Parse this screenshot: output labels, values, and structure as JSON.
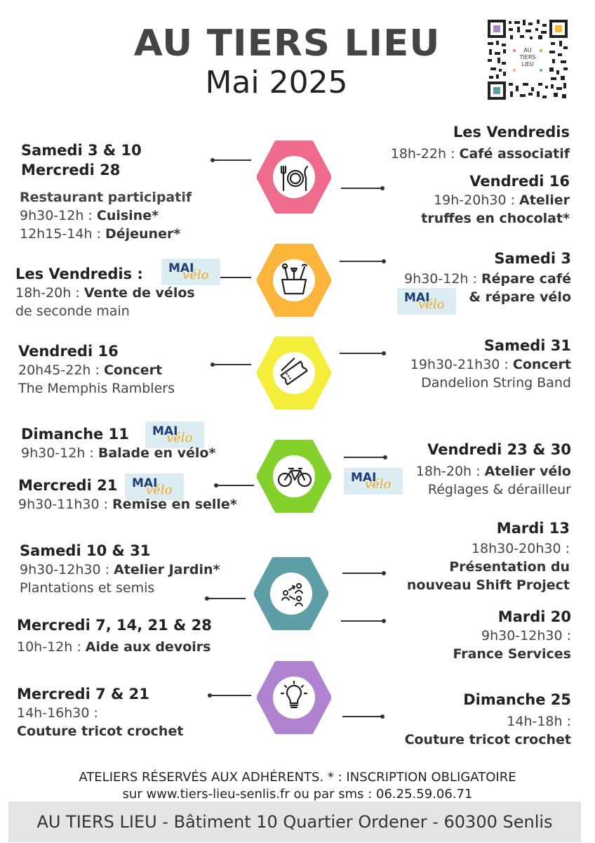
{
  "header": {
    "title": "AU TIERS LIEU",
    "subtitle": "Mai 2025",
    "qr_label": [
      "AU",
      "TIERS",
      "LIEU"
    ]
  },
  "badge": {
    "mai": "MAI",
    "velo": "vélo"
  },
  "colors": {
    "pink": "#ef6b8d",
    "orange": "#fcb43a",
    "yellow": "#f4ee3a",
    "green": "#84d12e",
    "teal": "#5e9ea7",
    "purple": "#b083d1"
  },
  "icons": [
    "cutlery-icon",
    "toolbox-icon",
    "ticket-icon",
    "bicycle-icon",
    "people-network-icon",
    "lightbulb-icon"
  ],
  "left": {
    "e1": {
      "h1": "Samedi 3 & 10",
      "h2": "Mercredi 28",
      "sub": "Restaurant participatif",
      "l1a": "9h30-12h : ",
      "l1b": "Cuisine*",
      "l2a": "12h15-14h : ",
      "l2b": "Déjeuner*"
    },
    "e2": {
      "h": "Les Vendredis :",
      "l1a": "18h-20h : ",
      "l1b": "Vente de vélos",
      "l2": "de seconde main"
    },
    "e3": {
      "h": "Vendredi 16",
      "l1a": "20h45-22h : ",
      "l1b": "Concert",
      "l2": "The Memphis Ramblers"
    },
    "e4": {
      "h": "Dimanche 11",
      "l1a": "9h30-12h : ",
      "l1b": "Balade en vélo*"
    },
    "e5": {
      "h": "Mercredi 21",
      "l1a": "9h30-11h30 : ",
      "l1b": "Remise en selle*"
    },
    "e6": {
      "h": "Samedi  10 & 31",
      "l1a": "9h30-12h30 : ",
      "l1b": "Atelier Jardin*",
      "l2": "Plantations et semis"
    },
    "e7": {
      "h": "Mercredi 7, 14, 21 & 28",
      "l1a": "10h-12h : ",
      "l1b": "Aide aux devoirs"
    },
    "e8": {
      "h": "Mercredi 7 & 21",
      "l1": "14h-16h30 :",
      "l2": "Couture  tricot crochet"
    }
  },
  "right": {
    "e1": {
      "h": "Les Vendredis",
      "l1a": "18h-22h : ",
      "l1b": "Café associatif"
    },
    "e2": {
      "h": "Vendredi 16",
      "l1a": "19h-20h30 : ",
      "l1b": "Atelier",
      "l2": "truffes en chocolat*"
    },
    "e3": {
      "h": "Samedi 3",
      "l1a": "9h30-12h : ",
      "l1b": "Répare café",
      "l2": "& répare vélo"
    },
    "e4": {
      "h": "Samedi 31",
      "l1a": "19h30-21h30 : ",
      "l1b": "Concert",
      "l2": "Dandelion String Band"
    },
    "e5": {
      "h": "Vendredi  23 & 30",
      "l1a": "18h-20h : ",
      "l1b": "Atelier vélo",
      "l2": "Réglages & dérailleur"
    },
    "e6": {
      "h": "Mardi 13",
      "l1": "18h30-20h30 :",
      "l2": "Présentation du",
      "l3": "nouveau Shift Project"
    },
    "e7": {
      "h": "Mardi 20",
      "l1": "9h30-12h30 :",
      "l2": "France Services"
    },
    "e8": {
      "h": "Dimanche 25",
      "l1": "14h-18h :",
      "l2": "Couture tricot crochet"
    }
  },
  "footer": {
    "line1": "ATELIERS RÉSERVÉS AUX ADHÉRENTS. * : INSCRIPTION OBLIGATOIRE",
    "line2": "sur www.tiers-lieu-senlis.fr  ou par sms : 06.25.59.06.71",
    "address": "AU TIERS LIEU - Bâtiment 10 Quartier Ordener - 60300 Senlis"
  }
}
